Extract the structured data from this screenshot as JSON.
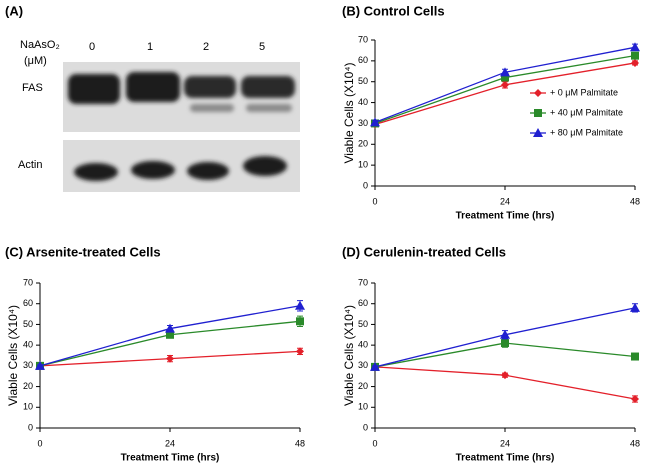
{
  "blot": {
    "label": "(A)",
    "reagent": "NaAsO₂",
    "unit": "(μM)",
    "lanes": [
      "0",
      "1",
      "2",
      "5"
    ],
    "rows": [
      "FAS",
      "Actin"
    ]
  },
  "chart_data": [
    {
      "type": "line",
      "title": "(B) Control Cells",
      "xlabel": "Treatment Time (hrs)",
      "ylabel": "Viable Cells (X10⁴)",
      "x": [
        0,
        24,
        48
      ],
      "xlim": [
        0,
        48
      ],
      "xticks": [
        0,
        24,
        48
      ],
      "ylim": [
        0,
        70
      ],
      "yticks": [
        0,
        10,
        20,
        30,
        40,
        50,
        60,
        70
      ],
      "legend": true,
      "legend_position": "right",
      "series": [
        {
          "name": "+ 0 μM Palmitate",
          "color": "#e3202a",
          "marker": "diamond",
          "values": [
            29.5,
            48.5,
            59
          ],
          "errors": [
            1,
            1.5,
            1
          ]
        },
        {
          "name": "+ 40 μM Palmitate",
          "color": "#2a8a2a",
          "marker": "square",
          "values": [
            30,
            52,
            62.5
          ],
          "errors": [
            1,
            1.5,
            1
          ]
        },
        {
          "name": "+ 80 μM Palmitate",
          "color": "#2020d0",
          "marker": "triangle",
          "values": [
            30.5,
            54.5,
            66.5
          ],
          "errors": [
            1,
            1.5,
            1.5
          ]
        }
      ]
    },
    {
      "type": "line",
      "title": "(C) Arsenite-treated Cells",
      "xlabel": "Treatment Time (hrs)",
      "ylabel": "Viable Cells (X10⁴)",
      "x": [
        0,
        24,
        48
      ],
      "xlim": [
        0,
        48
      ],
      "xticks": [
        0,
        24,
        48
      ],
      "ylim": [
        0,
        70
      ],
      "yticks": [
        0,
        10,
        20,
        30,
        40,
        50,
        60,
        70
      ],
      "legend": false,
      "series": [
        {
          "name": "+ 0 μM Palmitate",
          "color": "#e3202a",
          "marker": "diamond",
          "values": [
            30,
            33.5,
            37
          ],
          "errors": [
            0.5,
            1.5,
            1.5
          ]
        },
        {
          "name": "+ 40 μM Palmitate",
          "color": "#2a8a2a",
          "marker": "square",
          "values": [
            30,
            45,
            51.5
          ],
          "errors": [
            0.5,
            1.5,
            2.5
          ]
        },
        {
          "name": "+ 80 μM Palmitate",
          "color": "#2020d0",
          "marker": "triangle",
          "values": [
            30,
            48,
            59
          ],
          "errors": [
            0.5,
            1.5,
            2.5
          ]
        }
      ]
    },
    {
      "type": "line",
      "title": "(D) Cerulenin-treated Cells",
      "xlabel": "Treatment Time (hrs)",
      "ylabel": "Viable Cells (X10⁴)",
      "x": [
        0,
        24,
        48
      ],
      "xlim": [
        0,
        48
      ],
      "xticks": [
        0,
        24,
        48
      ],
      "ylim": [
        0,
        70
      ],
      "yticks": [
        0,
        10,
        20,
        30,
        40,
        50,
        60,
        70
      ],
      "legend": false,
      "series": [
        {
          "name": "+ 0 μM Palmitate",
          "color": "#e3202a",
          "marker": "diamond",
          "values": [
            29.5,
            25.5,
            14
          ],
          "errors": [
            0.5,
            1,
            1.5
          ]
        },
        {
          "name": "+ 40 μM Palmitate",
          "color": "#2a8a2a",
          "marker": "square",
          "values": [
            29.5,
            41,
            34.5
          ],
          "errors": [
            0.5,
            2,
            1.5
          ]
        },
        {
          "name": "+ 80 μM Palmitate",
          "color": "#2020d0",
          "marker": "triangle",
          "values": [
            29.5,
            45,
            58
          ],
          "errors": [
            0.5,
            2,
            2
          ]
        }
      ]
    }
  ]
}
